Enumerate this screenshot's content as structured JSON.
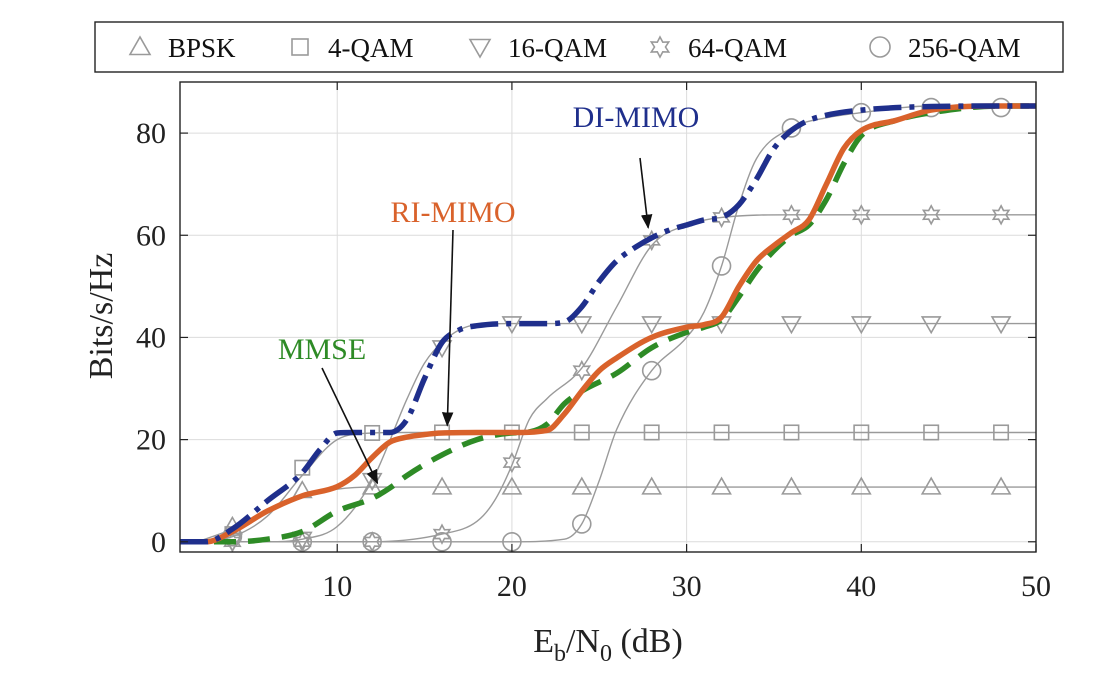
{
  "chart_data": {
    "type": "line",
    "xlabel": {
      "main": "E",
      "sub1": "b",
      "mid": "/N",
      "sub2": "0",
      "tail": " (dB)"
    },
    "ylabel": "Bits/s/Hz",
    "xlim": [
      1,
      50
    ],
    "ylim": [
      -2,
      90
    ],
    "x_ticks": [
      10,
      20,
      30,
      40,
      50
    ],
    "y_ticks": [
      0,
      20,
      40,
      60,
      80
    ],
    "grid": true,
    "legend_position": "top",
    "colors": {
      "di_mimo": "#1f2f8c",
      "ri_mimo": "#d9622b",
      "mmse": "#2e8b26",
      "reference": "#9a9a9a"
    },
    "legend": [
      {
        "label": "BPSK",
        "marker": "triangle-up"
      },
      {
        "label": "4-QAM",
        "marker": "square"
      },
      {
        "label": "16-QAM",
        "marker": "triangle-down"
      },
      {
        "label": "64-QAM",
        "marker": "hexagram"
      },
      {
        "label": "256-QAM",
        "marker": "circle"
      }
    ],
    "reference_series": [
      {
        "name": "BPSK",
        "marker": "triangle-up",
        "x": [
          2,
          4,
          6,
          8,
          10,
          12,
          14,
          16,
          20,
          24,
          28,
          32,
          36,
          40,
          44,
          48,
          50
        ],
        "y": [
          0,
          2.5,
          6,
          9,
          10.3,
          10.7,
          10.7,
          10.7,
          10.7,
          10.7,
          10.7,
          10.7,
          10.7,
          10.7,
          10.7,
          10.7,
          10.7
        ],
        "marker_x": [
          4,
          8,
          12,
          16,
          20,
          24,
          28,
          32,
          36,
          40,
          44,
          48
        ],
        "marker_y": [
          3,
          10,
          10.7,
          10.7,
          10.7,
          10.7,
          10.7,
          10.7,
          10.7,
          10.7,
          10.7,
          10.7
        ]
      },
      {
        "name": "4-QAM",
        "marker": "square",
        "x": [
          2,
          4,
          6,
          8,
          10,
          12,
          14,
          16,
          20,
          24,
          28,
          32,
          36,
          40,
          44,
          48,
          50
        ],
        "y": [
          0,
          1,
          5,
          13,
          20,
          21.3,
          21.4,
          21.4,
          21.4,
          21.4,
          21.4,
          21.4,
          21.4,
          21.4,
          21.4,
          21.4,
          21.4
        ],
        "marker_x": [
          4,
          8,
          12,
          16,
          20,
          24,
          28,
          32,
          36,
          40,
          44,
          48
        ],
        "marker_y": [
          1.5,
          14.5,
          21.3,
          21.4,
          21.4,
          21.4,
          21.4,
          21.4,
          21.4,
          21.4,
          21.4,
          21.4
        ]
      },
      {
        "name": "16-QAM",
        "marker": "triangle-down",
        "x": [
          2,
          4,
          6,
          8,
          10,
          12,
          14,
          15,
          16,
          17,
          18,
          20,
          24,
          28,
          32,
          36,
          40,
          44,
          48,
          50
        ],
        "y": [
          0,
          0,
          0,
          0.5,
          3,
          12,
          28,
          35,
          39,
          41.5,
          42.5,
          42.7,
          42.7,
          42.7,
          42.7,
          42.7,
          42.7,
          42.7,
          42.7,
          42.7
        ],
        "marker_x": [
          4,
          8,
          12,
          16,
          20,
          24,
          28,
          32,
          36,
          40,
          44,
          48
        ],
        "marker_y": [
          0,
          0.5,
          12,
          38,
          42.7,
          42.7,
          42.7,
          42.7,
          42.7,
          42.7,
          42.7,
          42.7
        ]
      },
      {
        "name": "64-QAM",
        "marker": "hexagram",
        "x": [
          2,
          4,
          8,
          12,
          16,
          18,
          19,
          20,
          21,
          22,
          24,
          26,
          28,
          30,
          32,
          36,
          40,
          44,
          48,
          50
        ],
        "y": [
          0,
          0,
          0,
          0,
          1.5,
          4,
          8,
          15,
          24,
          28,
          34,
          46,
          58,
          62,
          63.5,
          64,
          64,
          64,
          64,
          64
        ],
        "marker_x": [
          4,
          8,
          12,
          16,
          20,
          24,
          28,
          32,
          36,
          40,
          44,
          48
        ],
        "marker_y": [
          0,
          0,
          0,
          1.5,
          15.5,
          33.5,
          59,
          63.5,
          64,
          64,
          64,
          64
        ]
      },
      {
        "name": "256-QAM",
        "marker": "circle",
        "x": [
          2,
          4,
          8,
          12,
          16,
          20,
          23,
          24,
          25,
          26,
          28,
          30,
          31,
          32,
          33,
          34,
          36,
          38,
          40,
          44,
          48,
          50
        ],
        "y": [
          0,
          0,
          0,
          0,
          0,
          0,
          0.5,
          3.5,
          12,
          22,
          33.5,
          40,
          45,
          54,
          66,
          75,
          81,
          83,
          84,
          85.3,
          85.3,
          85.3
        ],
        "marker_x": [
          4,
          8,
          12,
          16,
          20,
          24,
          28,
          32,
          36,
          40,
          44,
          48
        ],
        "marker_y": [
          1,
          0,
          0,
          0,
          0,
          3.5,
          33.5,
          54,
          81,
          84,
          85,
          85
        ]
      }
    ],
    "series": [
      {
        "name": "DI-MIMO",
        "style": "dash-dot",
        "x": [
          1,
          2.5,
          4,
          6,
          8,
          9,
          10,
          11,
          12,
          13,
          14,
          15,
          16,
          17,
          18,
          20,
          22,
          23,
          24,
          25,
          26,
          27,
          28,
          29,
          30,
          31,
          32,
          33,
          34,
          35,
          36,
          37,
          38,
          40,
          44,
          48,
          50
        ],
        "y": [
          0,
          0,
          2.5,
          8,
          13.5,
          18,
          21.3,
          21.4,
          21.4,
          21.4,
          24,
          32,
          39,
          41.5,
          42.3,
          42.7,
          42.7,
          43,
          46,
          51,
          55,
          57.5,
          59.5,
          61,
          62,
          63,
          63.5,
          66,
          71,
          77,
          80.5,
          82.5,
          83.5,
          84.5,
          85.2,
          85.3,
          85.3
        ]
      },
      {
        "name": "RI-MIMO",
        "style": "solid",
        "x": [
          1,
          2.5,
          4,
          6,
          8,
          10,
          11,
          12,
          13,
          14,
          15,
          16,
          18,
          20,
          22,
          23,
          24,
          25,
          26,
          28,
          30,
          31,
          32,
          33,
          34,
          35,
          36,
          37,
          38,
          39,
          40,
          42,
          44,
          48,
          50
        ],
        "y": [
          0,
          0,
          2,
          6,
          9,
          10.8,
          13,
          16.5,
          19.5,
          20.5,
          21,
          21.3,
          21.4,
          21.4,
          21.8,
          25,
          29.5,
          33.5,
          36,
          40,
          42,
          42.5,
          44,
          50,
          55,
          58,
          60.5,
          63,
          70,
          77,
          80.5,
          82.5,
          84.5,
          85.3,
          85.3
        ]
      },
      {
        "name": "MMSE",
        "style": "dashed",
        "x": [
          1,
          2.5,
          4,
          6,
          8,
          10,
          12,
          13,
          14,
          16,
          18,
          20,
          21,
          22,
          23,
          24,
          26,
          28,
          30,
          31,
          32,
          33,
          34,
          35,
          36,
          37,
          38,
          39,
          40,
          42,
          44,
          48,
          50
        ],
        "y": [
          0,
          0,
          0,
          0.5,
          2,
          6,
          8.5,
          10.5,
          13,
          17,
          20,
          21.3,
          21.5,
          23,
          27,
          29.5,
          33,
          38,
          41,
          42,
          43.5,
          48,
          53,
          57,
          60,
          62,
          67,
          74,
          79.5,
          82.5,
          84,
          85.3,
          85.3
        ]
      }
    ],
    "annotations": [
      {
        "text": "DI-MIMO",
        "series": "DI-MIMO",
        "color": "#1f2f8c"
      },
      {
        "text": "RI-MIMO",
        "series": "RI-MIMO",
        "color": "#d9622b"
      },
      {
        "text": "MMSE",
        "series": "MMSE",
        "color": "#2e8b26"
      }
    ]
  }
}
